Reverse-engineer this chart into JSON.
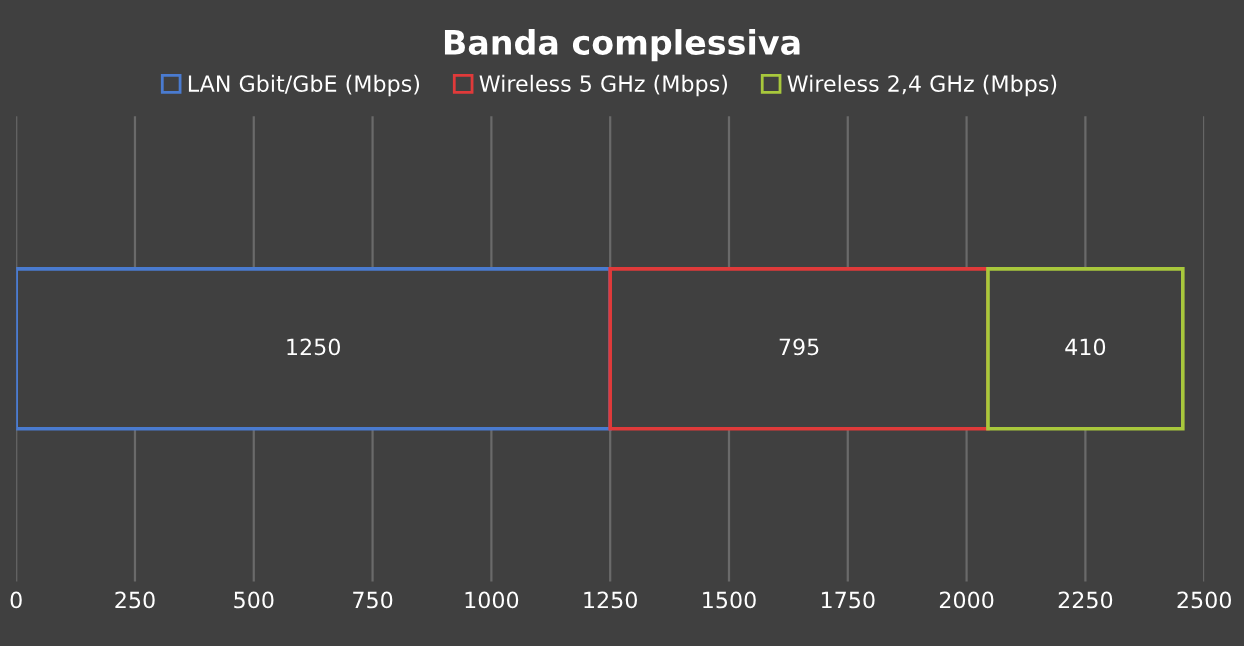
{
  "chart_data": {
    "type": "bar",
    "title": "Banda complessiva",
    "orientation": "horizontal",
    "stacked": true,
    "categories": [
      null
    ],
    "series": [
      {
        "name": "LAN Gbit/GbE (Mbps)",
        "color": "#4a7bd0",
        "values": [
          1250
        ]
      },
      {
        "name": "Wireless 5 GHz (Mbps)",
        "color": "#e03a3a",
        "values": [
          795
        ]
      },
      {
        "name": "Wireless 2,4 GHz (Mbps)",
        "color": "#a8c83c",
        "values": [
          410
        ]
      }
    ],
    "xlim": [
      0,
      2500
    ],
    "xticks": [
      0,
      250,
      500,
      750,
      1000,
      1250,
      1500,
      1750,
      2000,
      2250,
      2500
    ],
    "grid": "x",
    "legend": "top",
    "data_labels": true
  }
}
